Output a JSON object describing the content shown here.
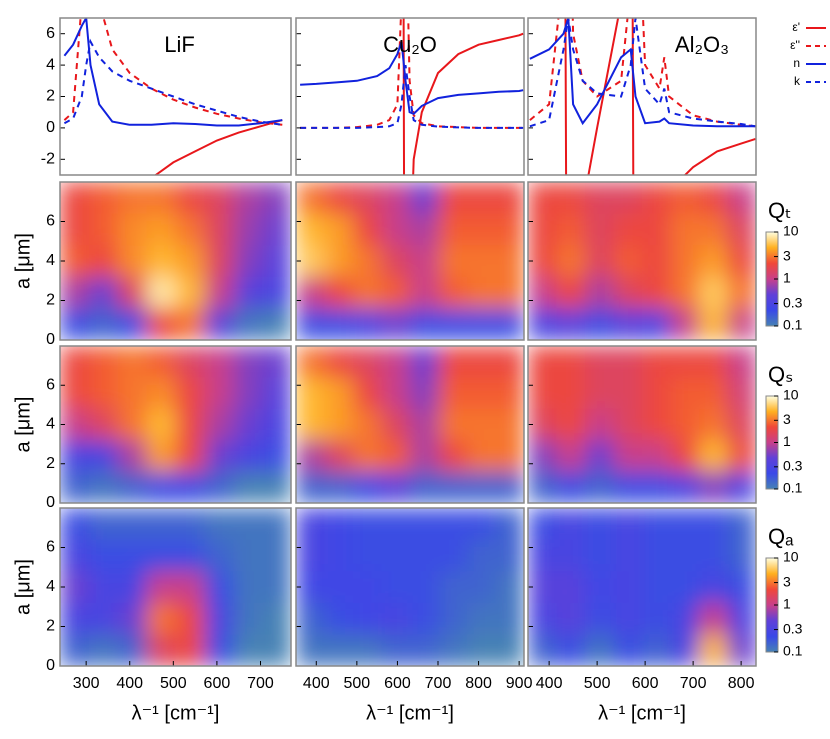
{
  "chart_data": [
    {
      "type": "line",
      "ylim": [
        -3,
        7
      ],
      "yticks": [
        -2,
        0,
        2,
        4,
        6
      ],
      "legend": "right",
      "series": [
        {
          "name": "ε'",
          "color": "#e8171b",
          "dash": false
        },
        {
          "name": "ε''",
          "color": "#e8171b",
          "dash": true
        },
        {
          "name": "n",
          "color": "#1122dd",
          "dash": false
        },
        {
          "name": "k",
          "color": "#1122dd",
          "dash": true
        }
      ],
      "panels": [
        {
          "title": "LiF",
          "xlim": [
            240,
            770
          ],
          "x": [
            250,
            270,
            290,
            300,
            310,
            330,
            360,
            400,
            450,
            500,
            550,
            600,
            650,
            700,
            750
          ],
          "values": [
            [
              8,
              10,
              30,
              null,
              -30,
              -15,
              -9,
              -5,
              -3.2,
              -2.2,
              -1.5,
              -0.8,
              -0.3,
              0.1,
              0.5
            ],
            [
              0.5,
              1,
              8,
              20,
              15,
              8,
              5,
              3.5,
              2.5,
              1.8,
              1.3,
              0.9,
              0.6,
              0.35,
              0.2
            ],
            [
              4.6,
              5.3,
              6.5,
              7,
              4,
              1.5,
              0.4,
              0.2,
              0.2,
              0.3,
              0.25,
              0.15,
              0.15,
              0.3,
              0.5
            ],
            [
              0.3,
              0.6,
              2,
              4,
              5.5,
              4.5,
              3.6,
              3,
              2.5,
              2,
              1.5,
              1.1,
              0.7,
              0.4,
              0.2
            ]
          ]
        },
        {
          "title": "Cu₂O",
          "xlim": [
            350,
            912
          ],
          "x": [
            360,
            400,
            450,
            500,
            550,
            580,
            600,
            610,
            620,
            630,
            640,
            660,
            700,
            750,
            800,
            850,
            900,
            910
          ],
          "values": [
            [
              8,
              8.3,
              8.8,
              9.5,
              11,
              14,
              25,
              60,
              -40,
              -10,
              -2,
              1,
              3.5,
              4.7,
              5.3,
              5.6,
              5.9,
              6
            ],
            [
              0,
              0,
              0,
              0.05,
              0.2,
              0.5,
              1.5,
              8,
              15,
              3,
              0.8,
              0.3,
              0.1,
              0.05,
              0,
              0,
              0,
              0
            ],
            [
              2.75,
              2.8,
              2.9,
              3,
              3.3,
              3.8,
              4.7,
              5.5,
              3,
              1,
              0.9,
              1.4,
              1.9,
              2.1,
              2.2,
              2.3,
              2.35,
              2.4
            ],
            [
              0,
              0,
              0,
              0,
              0.05,
              0.1,
              0.3,
              1.5,
              4,
              2,
              0.5,
              0.2,
              0.08,
              0.03,
              0,
              0,
              0,
              0
            ]
          ]
        },
        {
          "title": "Al₂O₃",
          "xlim": [
            356,
            831
          ],
          "x": [
            360,
            400,
            430,
            440,
            450,
            470,
            500,
            550,
            570,
            580,
            600,
            630,
            640,
            650,
            700,
            750,
            800,
            830
          ],
          "values": [
            [
              10,
              15,
              40,
              -40,
              -10,
              -5,
              0,
              8,
              40,
              -40,
              -10,
              -6,
              -5,
              -4,
              -2.5,
              -1.5,
              -1,
              -0.7
            ],
            [
              0.5,
              1.5,
              10,
              20,
              6,
              3,
              2,
              3,
              9,
              18,
              4,
              2.5,
              4.5,
              2,
              0.8,
              0.4,
              0.2,
              0.1
            ],
            [
              4.4,
              5,
              6,
              7,
              1.5,
              0.3,
              1.5,
              4.5,
              5,
              2,
              0.3,
              0.4,
              0.6,
              0.3,
              0.15,
              0.1,
              0.1,
              0.1
            ],
            [
              0.1,
              0.5,
              5,
              7,
              5,
              3,
              2.2,
              2,
              4,
              7,
              2.5,
              1.5,
              2.5,
              1,
              0.6,
              0.4,
              0.25,
              0.1
            ]
          ]
        }
      ]
    },
    {
      "type": "heatmap",
      "ylabel": "a [μm]",
      "ylim": [
        0,
        8
      ],
      "yticks": [
        0,
        2,
        4,
        6
      ],
      "colorbar": {
        "label": "Qₜ",
        "lim": [
          0.1,
          10
        ],
        "ticks": [
          10,
          3,
          1,
          0.3,
          0.1
        ],
        "log": true,
        "colors": [
          "#4682b4",
          "#3a48e8",
          "#6040d8",
          "#c8408a",
          "#f04838",
          "#ffb020",
          "#ffffe0"
        ]
      },
      "panels": [
        {
          "xlim": [
            240,
            770
          ],
          "z": [
            [
              2,
              2.5,
              3,
              3,
              2,
              1.5,
              0.8,
              0.6
            ],
            [
              2,
              2.5,
              3.5,
              4,
              3,
              1.5,
              0.7,
              0.5
            ],
            [
              2.5,
              2,
              3.5,
              5,
              4,
              1.5,
              0.6,
              0.4
            ],
            [
              0.8,
              0.5,
              1.5,
              8,
              5,
              1,
              0.4,
              0.3
            ],
            [
              0.2,
              0.15,
              0.2,
              2,
              3,
              0.4,
              0.12,
              0.1
            ]
          ]
        },
        {
          "xlim": [
            350,
            912
          ],
          "z": [
            [
              3,
              2,
              1.5,
              1,
              0.5,
              2,
              2,
              2
            ],
            [
              5,
              4,
              2,
              1,
              0.8,
              2.5,
              2.5,
              2.5
            ],
            [
              6,
              4,
              3,
              1.5,
              1,
              3,
              3,
              3
            ],
            [
              1,
              2,
              3,
              2.5,
              1,
              2.5,
              3,
              3
            ],
            [
              0.2,
              0.2,
              0.3,
              0.5,
              0.2,
              0.2,
              0.2,
              0.2
            ]
          ]
        },
        {
          "xlim": [
            356,
            831
          ],
          "z": [
            [
              2,
              2,
              1.5,
              1.5,
              2,
              2.5,
              2,
              1
            ],
            [
              2,
              2.5,
              1.5,
              2,
              2,
              3,
              3,
              1.5
            ],
            [
              2,
              3,
              1.5,
              2.5,
              2,
              3,
              4,
              2
            ],
            [
              1,
              2,
              0.8,
              1.5,
              2,
              3,
              6,
              3
            ],
            [
              0.3,
              0.4,
              0.2,
              0.4,
              0.3,
              1,
              5,
              1
            ]
          ]
        }
      ]
    },
    {
      "type": "heatmap",
      "ylabel": "a [μm]",
      "ylim": [
        0,
        8
      ],
      "yticks": [
        0,
        2,
        4,
        6
      ],
      "colorbar": {
        "label": "Qₛ",
        "lim": [
          0.1,
          10
        ],
        "ticks": [
          10,
          3,
          1,
          0.3,
          0.1
        ],
        "log": true,
        "colors": [
          "#4682b4",
          "#3a48e8",
          "#6040d8",
          "#c8408a",
          "#f04838",
          "#ffb020",
          "#ffffe0"
        ]
      },
      "panels": [
        {
          "xlim": [
            240,
            770
          ],
          "z": [
            [
              2,
              2.5,
              3,
              2.5,
              1.5,
              1,
              0.6,
              0.5
            ],
            [
              2,
              2.5,
              3,
              3.5,
              2,
              1,
              0.6,
              0.4
            ],
            [
              1,
              1.5,
              3,
              5,
              2,
              0.8,
              0.5,
              0.3
            ],
            [
              0.3,
              0.3,
              0.8,
              4,
              2,
              0.5,
              0.3,
              0.2
            ],
            [
              0.15,
              0.12,
              0.15,
              0.2,
              0.2,
              0.15,
              0.1,
              0.1
            ]
          ]
        },
        {
          "xlim": [
            350,
            912
          ],
          "z": [
            [
              3,
              2,
              1.5,
              1,
              0.5,
              2,
              2,
              2
            ],
            [
              5,
              4,
              2,
              1,
              0.6,
              2.5,
              2.5,
              2.5
            ],
            [
              5,
              4,
              3,
              1.5,
              0.8,
              3,
              3,
              3
            ],
            [
              0.8,
              1.5,
              3,
              2.5,
              0.8,
              2,
              3,
              3
            ],
            [
              0.15,
              0.15,
              0.2,
              0.4,
              0.15,
              0.15,
              0.15,
              0.15
            ]
          ]
        },
        {
          "xlim": [
            356,
            831
          ],
          "z": [
            [
              2,
              2,
              1.5,
              1.5,
              2,
              2,
              2,
              1
            ],
            [
              2,
              2,
              1.5,
              1.5,
              2,
              2.5,
              2.5,
              1.2
            ],
            [
              1.5,
              2,
              1,
              1.5,
              2,
              2.5,
              3,
              1.5
            ],
            [
              0.6,
              1,
              0.5,
              1,
              1,
              2,
              5,
              2
            ],
            [
              0.15,
              0.2,
              0.15,
              0.2,
              0.2,
              0.3,
              0.6,
              0.3
            ]
          ]
        }
      ]
    },
    {
      "type": "heatmap",
      "ylabel": "a [μm]",
      "ylim": [
        0,
        8
      ],
      "yticks": [
        0,
        2,
        4,
        6
      ],
      "colorbar": {
        "label": "Qₐ",
        "lim": [
          0.1,
          10
        ],
        "ticks": [
          10,
          3,
          1,
          0.3,
          0.1
        ],
        "log": true,
        "colors": [
          "#4682b4",
          "#3a48e8",
          "#6040d8",
          "#c8408a",
          "#f04838",
          "#ffb020",
          "#ffffe0"
        ]
      },
      "panels": [
        {
          "xlim": [
            240,
            770
          ],
          "xticks": [
            300,
            400,
            500,
            600,
            700
          ],
          "xlabel": "λ⁻¹ [cm⁻¹]",
          "z": [
            [
              0.2,
              0.15,
              0.15,
              0.15,
              0.15,
              0.12,
              0.12,
              0.12
            ],
            [
              0.3,
              0.2,
              0.2,
              0.2,
              0.2,
              0.15,
              0.12,
              0.12
            ],
            [
              0.5,
              0.3,
              0.3,
              1,
              1,
              0.2,
              0.12,
              0.12
            ],
            [
              0.3,
              0.3,
              0.5,
              3,
              2,
              0.3,
              0.12,
              0.1
            ],
            [
              0.15,
              0.12,
              0.15,
              1.5,
              2,
              0.2,
              0.1,
              0.1
            ]
          ]
        },
        {
          "xlim": [
            350,
            912
          ],
          "xticks": [
            400,
            500,
            600,
            700,
            800,
            900
          ],
          "xlabel": "λ⁻¹ [cm⁻¹]",
          "z": [
            [
              0.3,
              0.25,
              0.2,
              0.2,
              0.2,
              0.2,
              0.2,
              0.15
            ],
            [
              0.3,
              0.25,
              0.2,
              0.2,
              0.2,
              0.2,
              0.15,
              0.15
            ],
            [
              0.25,
              0.25,
              0.25,
              0.2,
              0.2,
              0.15,
              0.15,
              0.12
            ],
            [
              0.15,
              0.2,
              0.25,
              0.3,
              0.2,
              0.15,
              0.12,
              0.12
            ],
            [
              0.12,
              0.12,
              0.12,
              0.15,
              0.15,
              0.12,
              0.1,
              0.1
            ]
          ]
        },
        {
          "xlim": [
            356,
            831
          ],
          "xticks": [
            400,
            500,
            600,
            700,
            800
          ],
          "xlabel": "λ⁻¹ [cm⁻¹]",
          "z": [
            [
              0.2,
              0.3,
              0.2,
              0.3,
              0.2,
              0.2,
              0.2,
              0.15
            ],
            [
              0.3,
              0.3,
              0.2,
              0.3,
              0.2,
              0.2,
              0.2,
              0.15
            ],
            [
              0.4,
              0.4,
              0.25,
              0.3,
              0.2,
              0.2,
              0.3,
              0.2
            ],
            [
              0.3,
              0.4,
              0.2,
              0.3,
              0.2,
              0.3,
              1,
              0.3
            ],
            [
              0.15,
              0.2,
              0.12,
              0.2,
              0.15,
              0.3,
              5,
              0.5
            ]
          ]
        }
      ]
    }
  ]
}
